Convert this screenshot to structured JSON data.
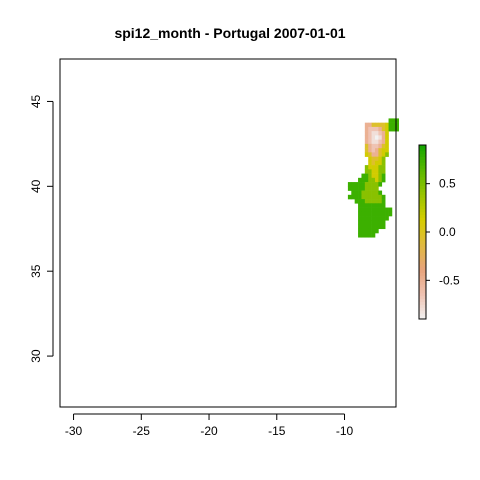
{
  "chart_data": {
    "type": "heatmap",
    "title": "spi12_month - Portugal 2007-01-01",
    "xlabel": "",
    "ylabel": "",
    "xlim": [
      -31,
      -6.2
    ],
    "ylim": [
      27,
      47.5
    ],
    "x_ticks": [
      -30,
      -25,
      -20,
      -15,
      -10
    ],
    "y_ticks": [
      30,
      35,
      40,
      45
    ],
    "colorbar": {
      "range": [
        -0.9,
        0.9
      ],
      "ticks": [
        -0.5,
        0.0,
        0.5
      ],
      "tick_labels": [
        "-0.5",
        "0.0",
        "0.5"
      ],
      "colors": [
        "#f2f2f2",
        "#efc2b1",
        "#e7a37b",
        "#e0ba3f",
        "#d6cd00",
        "#99c400",
        "#5ab800",
        "#13a500"
      ]
    },
    "cell_size_deg": 0.25,
    "grid_origin": {
      "lon": -9.75,
      "lat": 37.0
    },
    "rows": [
      "...............",
      "............AAA",
      ".....EEDDDDCAAA",
      ".....EFFFEDCAAA",
      ".....EFGGFEC...",
      ".....EFGHGEC...",
      ".....EFGGFEC...",
      ".....DEFFEDC...",
      ".....DEFEDCC...",
      ".....CDEEDCB...",
      "......CDDCB....",
      "......CDCCB....",
      ".....BCCCBB....",
      ".....BBCCBB....",
      "....AABCCBA....",
      "...AAABBCBA....",
      "AAAAABBBBA.....",
      "AAAAABBBB......",
      ".AAABBBBBA.....",
      "AAAABBBBBBA....",
      "..AAABBBBBA....",
      "...AAAAAAAA....",
      "...AAAAAAAAAA..",
      "...AAAAAAAAAA..",
      "...AAAAAAAAA...",
      "...AAAAAAAA....",
      "...AAAAAAAA....",
      "...AAAAAA......",
      "...AAAAA......."
    ],
    "level_values": {
      "A": 0.75,
      "B": 0.45,
      "C": 0.15,
      "D": -0.05,
      "E": -0.5,
      "F": -0.65,
      "G": -0.8,
      "H": -0.9
    }
  }
}
